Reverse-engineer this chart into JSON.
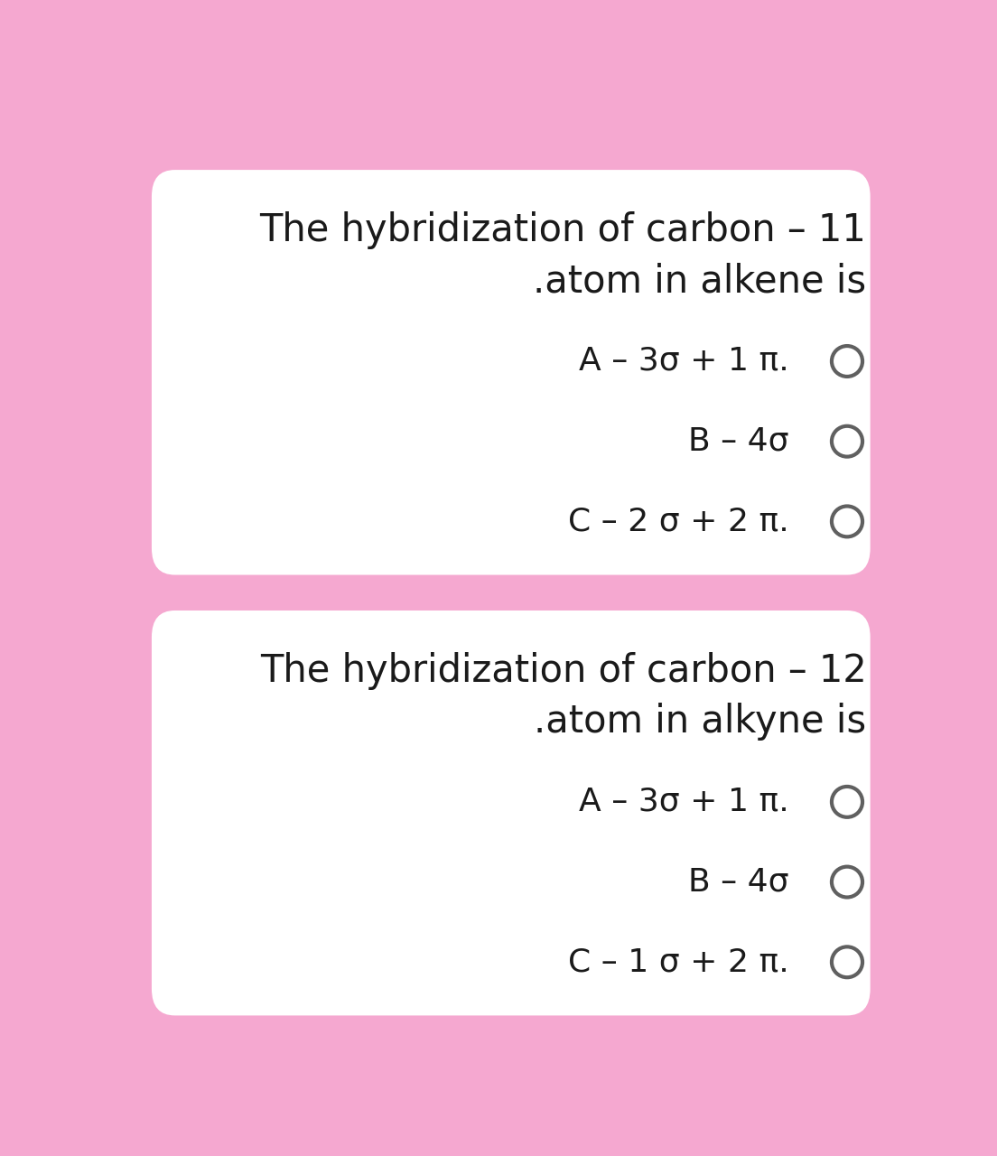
{
  "bg_color": "#f5a8d0",
  "card_color": "#ffffff",
  "text_color": "#1a1a1a",
  "circle_color": "#606060",
  "question1_line1": "The hybridization of carbon – 11",
  "question1_line2": ".atom in alkene is",
  "question2_line1": "The hybridization of carbon – 12",
  "question2_line2": ".atom in alkyne is",
  "q1_options": [
    "A – 3σ + 1 π.",
    "B – 4σ",
    "C – 2 σ + 2 π."
  ],
  "q2_options": [
    "A – 3σ + 1 π.",
    "B – 4σ",
    "C – 1 σ + 2 π."
  ],
  "title_fontsize": 30,
  "option_fontsize": 26
}
